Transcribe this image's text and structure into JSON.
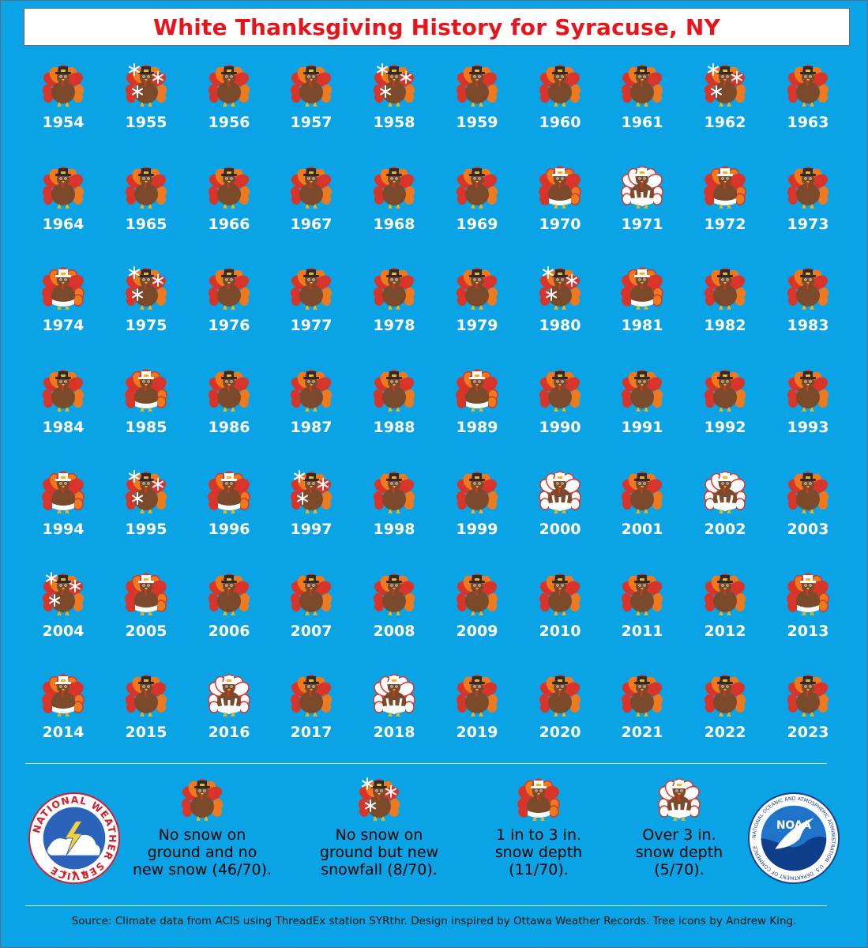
{
  "title": "White Thanksgiving History for Syracuse, NY",
  "chart_data": {
    "type": "table",
    "title": "White Thanksgiving History for Syracuse, NY",
    "categories_legend": {
      "none": "No snow on ground and no new snow (46/70).",
      "new_snow": "No snow on ground but new snowfall (8/70).",
      "depth_1_3": "1 in to 3 in. snow depth (11/70).",
      "depth_over_3": "Over 3 in. snow depth (5/70)."
    },
    "years": [
      {
        "year": "1954",
        "category": "none"
      },
      {
        "year": "1955",
        "category": "new_snow"
      },
      {
        "year": "1956",
        "category": "none"
      },
      {
        "year": "1957",
        "category": "none"
      },
      {
        "year": "1958",
        "category": "new_snow"
      },
      {
        "year": "1959",
        "category": "none"
      },
      {
        "year": "1960",
        "category": "none"
      },
      {
        "year": "1961",
        "category": "none"
      },
      {
        "year": "1962",
        "category": "new_snow"
      },
      {
        "year": "1963",
        "category": "none"
      },
      {
        "year": "1964",
        "category": "none"
      },
      {
        "year": "1965",
        "category": "none"
      },
      {
        "year": "1966",
        "category": "none"
      },
      {
        "year": "1967",
        "category": "none"
      },
      {
        "year": "1968",
        "category": "none"
      },
      {
        "year": "1969",
        "category": "none"
      },
      {
        "year": "1970",
        "category": "depth_1_3"
      },
      {
        "year": "1971",
        "category": "depth_over_3"
      },
      {
        "year": "1972",
        "category": "depth_1_3"
      },
      {
        "year": "1973",
        "category": "none"
      },
      {
        "year": "1974",
        "category": "depth_1_3"
      },
      {
        "year": "1975",
        "category": "new_snow"
      },
      {
        "year": "1976",
        "category": "none"
      },
      {
        "year": "1977",
        "category": "none"
      },
      {
        "year": "1978",
        "category": "none"
      },
      {
        "year": "1979",
        "category": "none"
      },
      {
        "year": "1980",
        "category": "new_snow"
      },
      {
        "year": "1981",
        "category": "depth_1_3"
      },
      {
        "year": "1982",
        "category": "none"
      },
      {
        "year": "1983",
        "category": "none"
      },
      {
        "year": "1984",
        "category": "none"
      },
      {
        "year": "1985",
        "category": "depth_1_3"
      },
      {
        "year": "1986",
        "category": "none"
      },
      {
        "year": "1987",
        "category": "none"
      },
      {
        "year": "1988",
        "category": "none"
      },
      {
        "year": "1989",
        "category": "depth_1_3"
      },
      {
        "year": "1990",
        "category": "none"
      },
      {
        "year": "1991",
        "category": "none"
      },
      {
        "year": "1992",
        "category": "none"
      },
      {
        "year": "1993",
        "category": "none"
      },
      {
        "year": "1994",
        "category": "depth_1_3"
      },
      {
        "year": "1995",
        "category": "new_snow"
      },
      {
        "year": "1996",
        "category": "depth_1_3"
      },
      {
        "year": "1997",
        "category": "new_snow"
      },
      {
        "year": "1998",
        "category": "none"
      },
      {
        "year": "1999",
        "category": "none"
      },
      {
        "year": "2000",
        "category": "depth_over_3"
      },
      {
        "year": "2001",
        "category": "none"
      },
      {
        "year": "2002",
        "category": "depth_over_3"
      },
      {
        "year": "2003",
        "category": "none"
      },
      {
        "year": "2004",
        "category": "new_snow"
      },
      {
        "year": "2005",
        "category": "depth_1_3"
      },
      {
        "year": "2006",
        "category": "none"
      },
      {
        "year": "2007",
        "category": "none"
      },
      {
        "year": "2008",
        "category": "none"
      },
      {
        "year": "2009",
        "category": "none"
      },
      {
        "year": "2010",
        "category": "none"
      },
      {
        "year": "2011",
        "category": "none"
      },
      {
        "year": "2012",
        "category": "none"
      },
      {
        "year": "2013",
        "category": "depth_1_3"
      },
      {
        "year": "2014",
        "category": "depth_1_3"
      },
      {
        "year": "2015",
        "category": "none"
      },
      {
        "year": "2016",
        "category": "depth_over_3"
      },
      {
        "year": "2017",
        "category": "none"
      },
      {
        "year": "2018",
        "category": "depth_over_3"
      },
      {
        "year": "2019",
        "category": "none"
      },
      {
        "year": "2020",
        "category": "none"
      },
      {
        "year": "2021",
        "category": "none"
      },
      {
        "year": "2022",
        "category": "none"
      },
      {
        "year": "2023",
        "category": "none"
      }
    ]
  },
  "legend": {
    "none": "No snow on\nground and no\nnew snow (46/70).",
    "new_snow": "No snow on\nground but new\nsnowfall (8/70).",
    "depth_1_3": "1 in to 3 in.\nsnow depth\n(11/70).",
    "depth_over_3": "Over 3 in.\nsnow depth\n(5/70)."
  },
  "logos": {
    "nws_text": "NATIONAL WEATHER SERVICE",
    "noaa_text": "NOAA",
    "noaa_ring_text": "NATIONAL OCEANIC AND ATMOSPHERIC ADMINISTRATION · U.S. DEPARTMENT OF COMMERCE ·"
  },
  "source": "Source: Climate data from ACIS using ThreadEx station SYRthr. Design inspired by Ottawa Weather Records. Tree icons by Andrew King.",
  "icons": {
    "none": "turkey-icon",
    "new_snow": "turkey-snowflakes-icon",
    "depth_1_3": "turkey-light-snow-icon",
    "depth_over_3": "turkey-heavy-snow-icon"
  },
  "colors": {
    "background": "#0aa4e6",
    "title": "#e8141b",
    "year_text": "#ffffff"
  }
}
